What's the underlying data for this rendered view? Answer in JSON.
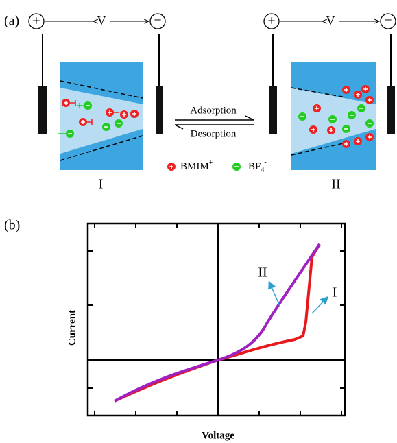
{
  "panel_a": {
    "label": "(a)",
    "left_cell": {
      "plus": "+",
      "minus": "−",
      "voltage": "V",
      "numeral": "I"
    },
    "right_cell": {
      "plus": "+",
      "minus": "−",
      "voltage": "V",
      "numeral": "II"
    },
    "forward": "Adsorption",
    "backward": "Desorption",
    "legend": {
      "cation": "BMIM",
      "cation_charge": "+",
      "anion": "BF",
      "anion_sub": "4",
      "anion_charge": "-"
    }
  },
  "panel_b": {
    "label": "(b)",
    "y_axis": "Current",
    "x_axis": "Voltage",
    "curve_labels": [
      "II",
      "I"
    ]
  }
}
